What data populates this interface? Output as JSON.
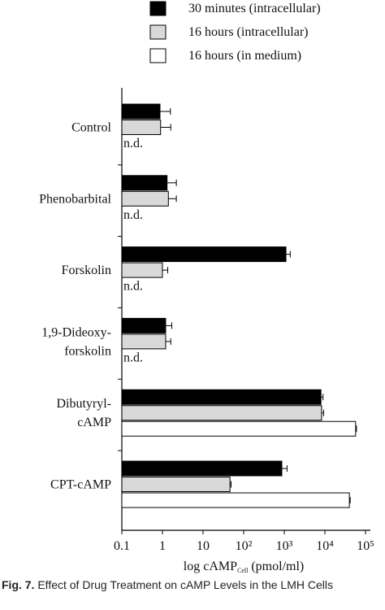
{
  "chart_data": {
    "type": "bar",
    "orientation": "horizontal",
    "log_x": true,
    "categories": [
      [
        "Control"
      ],
      [
        "Phenobarbital"
      ],
      [
        "Forskolin"
      ],
      [
        "1,9-Dideoxy-",
        "forskolin"
      ],
      [
        "Dibutyryl-",
        "cAMP"
      ],
      [
        "CPT-cAMP"
      ]
    ],
    "series": [
      {
        "name": "30 minutes (intracellular)",
        "color": "#000000",
        "values": [
          0.87,
          1.3,
          1100,
          1.2,
          8000,
          870
        ],
        "errors": [
          0.7,
          0.9,
          300,
          0.5,
          1000,
          300
        ]
      },
      {
        "name": "16 hours (intracellular)",
        "color": "#d9d9d9",
        "values": [
          0.9,
          1.4,
          1.0,
          1.2,
          8300,
          46
        ],
        "errors": [
          0.7,
          0.8,
          0.35,
          0.4,
          1000,
          3
        ]
      },
      {
        "name": "16 hours (in medium)",
        "color": "#ffffff",
        "values": [
          null,
          null,
          null,
          null,
          57000,
          40000
        ],
        "errors": [
          null,
          null,
          null,
          null,
          3000,
          2000
        ],
        "value_labels": [
          "n.d.",
          "n.d.",
          "n.d.",
          "n.d.",
          null,
          null
        ]
      }
    ],
    "xlim": [
      0.1,
      100000
    ],
    "xticks": [
      0.1,
      1,
      10,
      {
        "value": 100,
        "label": "10²"
      },
      {
        "value": 1000,
        "label": "10³"
      },
      {
        "value": 10000,
        "label": "10⁴"
      },
      {
        "value": 100000,
        "label": "10⁵"
      }
    ],
    "x_label": [
      "log cAMP",
      "Cell",
      "(pmol/ml)"
    ]
  },
  "caption": {
    "label": "Fig. 7.",
    "text": "Effect of Drug Treatment on cAMP Levels in the LMH Cells"
  }
}
